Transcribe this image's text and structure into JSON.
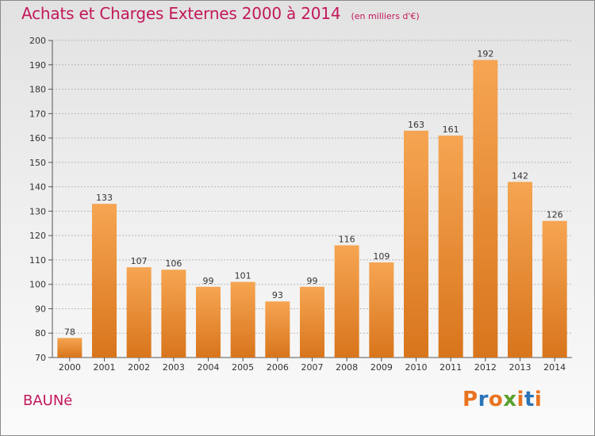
{
  "header": {
    "title": "Achats et Charges Externes 2000 à 2014",
    "unit": "(en milliers d'€)"
  },
  "footer": {
    "commune": "BAUNé",
    "logo_text": "Proxiti"
  },
  "colors": {
    "title": "#c2185b",
    "bar_top": "#f6a552",
    "bar_bottom": "#d8751c",
    "logo_letters": [
      "#e8731f",
      "#2a74b7",
      "#e8731f",
      "#5aa02c",
      "#e8731f",
      "#2a74b7",
      "#e8731f"
    ]
  },
  "chart_data": {
    "type": "bar",
    "title": "Achats et Charges Externes 2000 à 2014",
    "xlabel": "",
    "ylabel": "",
    "categories": [
      "2000",
      "2001",
      "2002",
      "2003",
      "2004",
      "2005",
      "2006",
      "2007",
      "2008",
      "2009",
      "2010",
      "2011",
      "2012",
      "2013",
      "2014"
    ],
    "values": [
      78,
      133,
      107,
      106,
      99,
      101,
      93,
      99,
      116,
      109,
      163,
      161,
      192,
      142,
      126
    ],
    "ylim": [
      70,
      200
    ],
    "yticks": [
      70,
      80,
      90,
      100,
      110,
      120,
      130,
      140,
      150,
      160,
      170,
      180,
      190,
      200
    ],
    "grid": true,
    "legend": "none"
  }
}
